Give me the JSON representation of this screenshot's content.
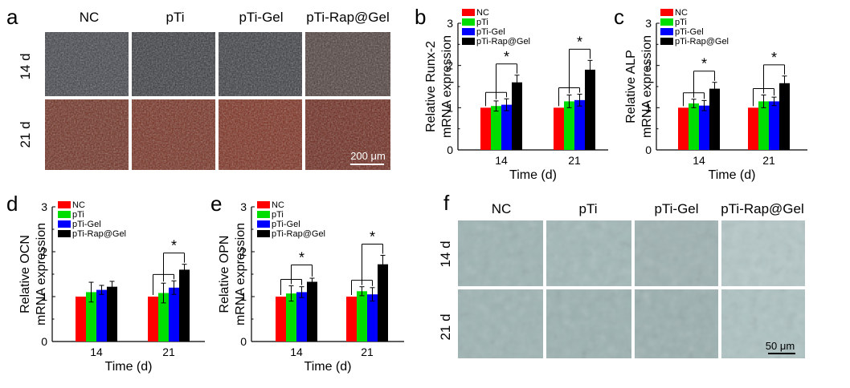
{
  "panel_letters": {
    "a": "a",
    "b": "b",
    "c": "c",
    "d": "d",
    "e": "e",
    "f": "f"
  },
  "micrographs": {
    "a": {
      "columns": [
        "NC",
        "pTi",
        "pTi-Gel",
        "pTi-Rap@Gel"
      ],
      "rows": [
        "14 d",
        "21 d"
      ],
      "scale_bar": "200 μm"
    },
    "f": {
      "columns": [
        "NC",
        "pTi",
        "pTi-Gel",
        "pTi-Rap@Gel"
      ],
      "rows": [
        "14 d",
        "21 d"
      ],
      "scale_bar": "50 μm"
    }
  },
  "series_colors": [
    "#ff0000",
    "#00dd00",
    "#0000ff",
    "#000000"
  ],
  "chart_data": [
    {
      "panel": "b",
      "type": "bar",
      "ylabel_lines": [
        "Relative Runx-2",
        "mRNA expression"
      ],
      "xlabel": "Time (d)",
      "categories": [
        "14",
        "21"
      ],
      "ylim": [
        0,
        3
      ],
      "yticks": [
        0,
        1,
        2,
        3
      ],
      "series": [
        {
          "name": "NC",
          "values": [
            1.0,
            1.0
          ],
          "errors": [
            0,
            0
          ]
        },
        {
          "name": "pTi",
          "values": [
            1.04,
            1.15
          ],
          "errors": [
            0.12,
            0.15
          ]
        },
        {
          "name": "pTi-Gel",
          "values": [
            1.07,
            1.18
          ],
          "errors": [
            0.14,
            0.14
          ]
        },
        {
          "name": "pTi-Rap@Gel",
          "values": [
            1.6,
            1.9
          ],
          "errors": [
            0.17,
            0.22
          ]
        }
      ],
      "significance": [
        {
          "category": "14",
          "label": "*"
        },
        {
          "category": "21",
          "label": "*"
        }
      ]
    },
    {
      "panel": "c",
      "type": "bar",
      "ylabel_lines": [
        "Relative ALP",
        "mRNA expression"
      ],
      "xlabel": "Time (d)",
      "categories": [
        "14",
        "21"
      ],
      "ylim": [
        0,
        3
      ],
      "yticks": [
        0,
        1,
        2,
        3
      ],
      "series": [
        {
          "name": "NC",
          "values": [
            1.0,
            1.0
          ],
          "errors": [
            0,
            0
          ]
        },
        {
          "name": "pTi",
          "values": [
            1.1,
            1.15
          ],
          "errors": [
            0.1,
            0.15
          ]
        },
        {
          "name": "pTi-Gel",
          "values": [
            1.05,
            1.15
          ],
          "errors": [
            0.12,
            0.1
          ]
        },
        {
          "name": "pTi-Rap@Gel",
          "values": [
            1.45,
            1.58
          ],
          "errors": [
            0.15,
            0.17
          ]
        }
      ],
      "significance": [
        {
          "category": "14",
          "label": "*"
        },
        {
          "category": "21",
          "label": "*"
        }
      ]
    },
    {
      "panel": "d",
      "type": "bar",
      "ylabel_lines": [
        "Relative OCN",
        "mRNA expression"
      ],
      "xlabel": "Time (d)",
      "categories": [
        "14",
        "21"
      ],
      "ylim": [
        0,
        3
      ],
      "yticks": [
        0,
        1,
        2,
        3
      ],
      "series": [
        {
          "name": "NC",
          "values": [
            1.0,
            1.0
          ],
          "errors": [
            0,
            0
          ]
        },
        {
          "name": "pTi",
          "values": [
            1.1,
            1.08
          ],
          "errors": [
            0.22,
            0.22
          ]
        },
        {
          "name": "pTi-Gel",
          "values": [
            1.15,
            1.2
          ],
          "errors": [
            0.1,
            0.15
          ]
        },
        {
          "name": "pTi-Rap@Gel",
          "values": [
            1.22,
            1.6
          ],
          "errors": [
            0.12,
            0.12
          ]
        }
      ],
      "significance": [
        {
          "category": "21",
          "label": "*"
        }
      ]
    },
    {
      "panel": "e",
      "type": "bar",
      "ylabel_lines": [
        "Relative OPN",
        "mRNA expression"
      ],
      "xlabel": "Time (d)",
      "categories": [
        "14",
        "21"
      ],
      "ylim": [
        0,
        3
      ],
      "yticks": [
        0,
        1,
        2,
        3
      ],
      "series": [
        {
          "name": "NC",
          "values": [
            1.0,
            1.0
          ],
          "errors": [
            0,
            0
          ]
        },
        {
          "name": "pTi",
          "values": [
            1.07,
            1.12
          ],
          "errors": [
            0.17,
            0.1
          ]
        },
        {
          "name": "pTi-Gel",
          "values": [
            1.1,
            1.05
          ],
          "errors": [
            0.12,
            0.15
          ]
        },
        {
          "name": "pTi-Rap@Gel",
          "values": [
            1.33,
            1.72
          ],
          "errors": [
            0.08,
            0.2
          ]
        }
      ],
      "significance": [
        {
          "category": "14",
          "label": "*"
        },
        {
          "category": "21",
          "label": "*"
        }
      ]
    }
  ]
}
